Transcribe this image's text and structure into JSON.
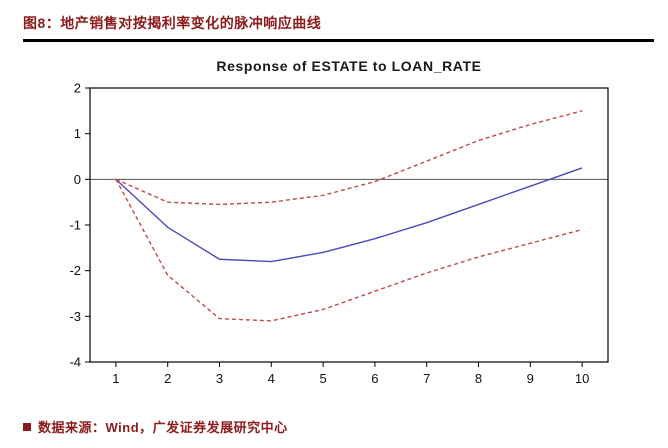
{
  "header": {
    "title": "图8：地产销售对按揭利率变化的脉冲响应曲线"
  },
  "footer": {
    "source": "数据来源：Wind，广发证券发展研究中心"
  },
  "colors": {
    "accent": "#8b1c1c",
    "rule": "#000000",
    "axis": "#000000",
    "zero_line": "#555555",
    "response_line": "#4a4ab8",
    "band_line": "#c24848"
  },
  "chart_data": {
    "type": "line",
    "title": "Response of ESTATE to LOAN_RATE",
    "x": [
      1,
      2,
      3,
      4,
      5,
      6,
      7,
      8,
      9,
      10
    ],
    "series": [
      {
        "name": "response",
        "color": "#4a4ab8",
        "style": "solid",
        "values": [
          0,
          -1.05,
          -1.75,
          -1.8,
          -1.6,
          -1.3,
          -0.95,
          -0.55,
          -0.15,
          0.25
        ]
      },
      {
        "name": "upper-confidence-band",
        "color": "#c24848",
        "style": "dashed",
        "values": [
          0,
          -0.5,
          -0.55,
          -0.5,
          -0.35,
          -0.05,
          0.4,
          0.85,
          1.2,
          1.5
        ]
      },
      {
        "name": "lower-confidence-band",
        "color": "#c24848",
        "style": "dashed",
        "values": [
          0,
          -2.1,
          -3.05,
          -3.1,
          -2.85,
          -2.45,
          -2.05,
          -1.7,
          -1.4,
          -1.1
        ]
      }
    ],
    "xlabel": "",
    "ylabel": "",
    "ylim": [
      -4,
      2
    ],
    "yticks": [
      2,
      1,
      0,
      -1,
      -2,
      -3,
      -4
    ],
    "xticks": [
      1,
      2,
      3,
      4,
      5,
      6,
      7,
      8,
      9,
      10
    ],
    "zero_line": true,
    "grid": false,
    "legend_position": "none"
  }
}
